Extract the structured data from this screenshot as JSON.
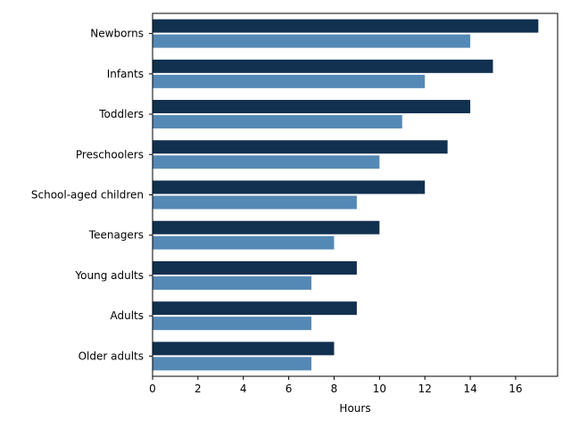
{
  "chart_data": {
    "type": "bar",
    "orientation": "horizontal",
    "categories": [
      "Newborns",
      "Infants",
      "Toddlers",
      "Preschoolers",
      "School-aged children",
      "Teenagers",
      "Young adults",
      "Adults",
      "Older adults"
    ],
    "series": [
      {
        "values": [
          17,
          15,
          14,
          13,
          12,
          10,
          9,
          9,
          8
        ],
        "color": "#12304f"
      },
      {
        "values": [
          14,
          12,
          11,
          10,
          9,
          8,
          7,
          7,
          7
        ],
        "color": "#5589b5"
      }
    ],
    "xlabel": "Hours",
    "xlim": [
      0,
      17.85
    ],
    "xticks": [
      0,
      2,
      4,
      6,
      8,
      10,
      12,
      14,
      16
    ],
    "grid": false,
    "legend": false
  }
}
